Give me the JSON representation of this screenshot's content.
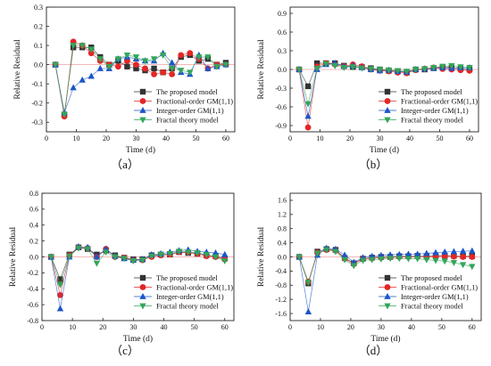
{
  "figure": {
    "series_styles": [
      {
        "name": "The proposed model",
        "color": "#333333",
        "marker": "square"
      },
      {
        "name": "Fractional-order GM(1,1)",
        "color": "#e32626",
        "marker": "circle"
      },
      {
        "name": "Integer-order GM(1,1)",
        "color": "#1b55c9",
        "marker": "triangle-up"
      },
      {
        "name": "Fractal theory model",
        "color": "#33a65a",
        "marker": "triangle-down"
      }
    ],
    "zero_line_color": "#f0a0a0"
  },
  "chart_data": [
    {
      "id": "a",
      "type": "line",
      "caption": "（a）",
      "xlabel": "Time (d)",
      "ylabel": "Relative Residual",
      "xlim": [
        0,
        63
      ],
      "ylim": [
        -0.35,
        0.3
      ],
      "xticks": [
        0,
        10,
        20,
        30,
        40,
        50,
        60
      ],
      "yticks": [
        -0.3,
        -0.2,
        -0.1,
        0.0,
        0.1,
        0.2,
        0.3
      ],
      "ytick_labels": [
        "-0.3",
        "-0.2",
        "-0.1",
        "0.0",
        "0.1",
        "0.2",
        "0.3"
      ],
      "grid": false,
      "legend_position": "lower-right",
      "x": [
        3,
        6,
        9,
        12,
        15,
        18,
        21,
        24,
        27,
        30,
        33,
        36,
        39,
        42,
        45,
        48,
        51,
        54,
        57,
        60
      ],
      "series": [
        {
          "name": "The proposed model",
          "values": [
            0,
            -0.26,
            0.09,
            0.09,
            0.09,
            0.04,
            0.0,
            0.02,
            -0.01,
            -0.02,
            -0.03,
            -0.02,
            -0.04,
            -0.02,
            0.04,
            0.05,
            0.02,
            0.03,
            0.0,
            0.01
          ]
        },
        {
          "name": "Fractional-order GM(1,1)",
          "values": [
            0,
            -0.27,
            0.12,
            0.1,
            0.06,
            0.02,
            0.0,
            -0.01,
            0.02,
            0.0,
            -0.02,
            -0.05,
            -0.04,
            -0.05,
            0.05,
            0.06,
            0.03,
            -0.02,
            0.0,
            0.0
          ]
        },
        {
          "name": "Integer-order GM(1,1)",
          "values": [
            0,
            -0.25,
            -0.12,
            -0.08,
            -0.06,
            -0.02,
            -0.02,
            0.03,
            0.04,
            0.03,
            0.02,
            0.02,
            0.06,
            0.01,
            -0.04,
            -0.05,
            0.05,
            -0.02,
            -0.01,
            0.0
          ]
        },
        {
          "name": "Fractal theory model",
          "values": [
            0,
            -0.26,
            0.1,
            0.1,
            0.08,
            0.03,
            -0.01,
            0.03,
            0.05,
            0.04,
            0.02,
            0.03,
            0.05,
            -0.02,
            -0.03,
            -0.04,
            0.04,
            0.04,
            -0.01,
            0.0
          ]
        }
      ]
    },
    {
      "id": "b",
      "type": "line",
      "caption": "（b）",
      "xlabel": "Time (d)",
      "ylabel": "Relative Residual",
      "xlim": [
        0,
        63
      ],
      "ylim": [
        -1.0,
        1.0
      ],
      "xticks": [
        0,
        10,
        20,
        30,
        40,
        50,
        60
      ],
      "yticks": [
        -0.9,
        -0.6,
        -0.3,
        0.0,
        0.3,
        0.6,
        0.9
      ],
      "ytick_labels": [
        "-0.9",
        "-0.6",
        "-0.3",
        "0.0",
        "0.3",
        "0.6",
        "0.9"
      ],
      "grid": false,
      "legend_position": "lower-right",
      "x": [
        3,
        6,
        9,
        12,
        15,
        18,
        21,
        24,
        27,
        30,
        33,
        36,
        39,
        42,
        45,
        48,
        51,
        54,
        57,
        60
      ],
      "series": [
        {
          "name": "The proposed model",
          "values": [
            0,
            -0.27,
            0.1,
            0.1,
            0.1,
            0.06,
            0.04,
            0.04,
            0.02,
            0.0,
            -0.02,
            -0.03,
            -0.05,
            0.0,
            0.0,
            0.02,
            0.04,
            0.03,
            0.01,
            0.0
          ]
        },
        {
          "name": "Fractional-order GM(1,1)",
          "values": [
            0,
            -0.93,
            0.05,
            0.1,
            0.08,
            0.05,
            0.08,
            0.05,
            0.0,
            -0.02,
            -0.03,
            -0.05,
            -0.06,
            -0.01,
            0.01,
            0.03,
            0.01,
            0.0,
            -0.01,
            -0.02
          ]
        },
        {
          "name": "Integer-order GM(1,1)",
          "values": [
            0,
            -0.75,
            0.0,
            0.08,
            0.1,
            0.05,
            0.06,
            0.03,
            0.0,
            -0.02,
            -0.01,
            -0.03,
            -0.04,
            0.0,
            0.01,
            0.02,
            0.03,
            0.02,
            0.03,
            0.03
          ]
        },
        {
          "name": "Fractal theory model",
          "values": [
            0,
            -0.55,
            0.02,
            0.09,
            0.06,
            0.03,
            0.04,
            0.02,
            0.01,
            0.0,
            -0.01,
            -0.02,
            -0.03,
            0.0,
            0.01,
            0.03,
            0.05,
            0.06,
            0.04,
            0.03
          ]
        }
      ]
    },
    {
      "id": "c",
      "type": "line",
      "caption": "（c）",
      "xlabel": "Time (d)",
      "ylabel": "Relative Residual",
      "xlim": [
        0,
        63
      ],
      "ylim": [
        -0.8,
        0.8
      ],
      "xticks": [
        0,
        10,
        20,
        30,
        40,
        50,
        60
      ],
      "yticks": [
        -0.8,
        -0.6,
        -0.4,
        -0.2,
        0.0,
        0.2,
        0.4,
        0.6,
        0.8
      ],
      "ytick_labels": [
        "-0.8",
        "-0.6",
        "-0.4",
        "-0.2",
        "0.0",
        "0.2",
        "0.4",
        "0.6",
        "0.8"
      ],
      "grid": false,
      "legend_position": "lower-right",
      "x": [
        3,
        6,
        9,
        12,
        15,
        18,
        21,
        24,
        27,
        30,
        33,
        36,
        39,
        42,
        45,
        48,
        51,
        54,
        57,
        60
      ],
      "series": [
        {
          "name": "The proposed model",
          "values": [
            0,
            -0.28,
            0.03,
            0.12,
            0.1,
            0.03,
            0.08,
            0.02,
            -0.01,
            -0.03,
            -0.03,
            0.02,
            0.03,
            0.03,
            0.06,
            0.05,
            0.04,
            0.02,
            0.01,
            -0.02
          ]
        },
        {
          "name": "Fractional-order GM(1,1)",
          "values": [
            0,
            -0.48,
            0.02,
            0.12,
            0.11,
            0.0,
            0.1,
            0.0,
            -0.01,
            -0.04,
            -0.04,
            0.0,
            0.02,
            0.03,
            0.06,
            0.06,
            0.04,
            0.01,
            0.0,
            -0.03
          ]
        },
        {
          "name": "Integer-order GM(1,1)",
          "values": [
            0,
            -0.65,
            0.0,
            0.13,
            0.12,
            0.0,
            0.1,
            0.01,
            -0.02,
            -0.04,
            -0.03,
            0.03,
            0.04,
            0.06,
            0.08,
            0.09,
            0.07,
            0.06,
            0.05,
            0.03
          ]
        },
        {
          "name": "Fractal theory model",
          "values": [
            0,
            -0.35,
            0.01,
            0.11,
            0.1,
            -0.08,
            0.06,
            0.0,
            -0.02,
            -0.05,
            -0.04,
            0.01,
            0.03,
            0.04,
            0.07,
            0.06,
            0.05,
            0.03,
            0.0,
            -0.05
          ]
        }
      ]
    },
    {
      "id": "d",
      "type": "line",
      "caption": "（d）",
      "xlabel": "Time (d)",
      "ylabel": "Relative Residual",
      "xlim": [
        0,
        63
      ],
      "ylim": [
        -1.8,
        1.8
      ],
      "xticks": [
        0,
        10,
        20,
        30,
        40,
        50,
        60
      ],
      "yticks": [
        -1.6,
        -1.2,
        -0.8,
        -0.4,
        0.0,
        0.4,
        0.8,
        1.2,
        1.6
      ],
      "ytick_labels": [
        "-1.6",
        "-1.2",
        "-0.8",
        "-0.4",
        "0.0",
        "0.4",
        "0.8",
        "1.2",
        "1.6"
      ],
      "grid": false,
      "legend_position": "lower-right",
      "x": [
        3,
        6,
        9,
        12,
        15,
        18,
        21,
        24,
        27,
        30,
        33,
        36,
        39,
        42,
        45,
        48,
        51,
        54,
        57,
        60
      ],
      "series": [
        {
          "name": "The proposed model",
          "values": [
            0,
            -0.75,
            0.15,
            0.22,
            0.2,
            -0.03,
            -0.18,
            -0.05,
            -0.02,
            0.0,
            0.0,
            0.02,
            0.02,
            0.03,
            0.02,
            0.03,
            0.04,
            0.03,
            0.02,
            0.02
          ]
        },
        {
          "name": "Fractional-order GM(1,1)",
          "values": [
            0,
            -0.7,
            0.12,
            0.2,
            0.18,
            -0.05,
            -0.2,
            -0.06,
            -0.04,
            -0.02,
            -0.01,
            0.0,
            0.0,
            0.01,
            0.0,
            0.01,
            0.02,
            0.01,
            0.0,
            0.0
          ]
        },
        {
          "name": "Integer-order GM(1,1)",
          "values": [
            0,
            -1.55,
            0.05,
            0.25,
            0.22,
            0.05,
            -0.15,
            -0.02,
            0.02,
            0.04,
            0.06,
            0.07,
            0.08,
            0.08,
            0.1,
            0.12,
            0.14,
            0.15,
            0.16,
            0.17
          ]
        },
        {
          "name": "Fractal theory model",
          "values": [
            0,
            -0.72,
            0.1,
            0.2,
            0.15,
            -0.08,
            -0.25,
            -0.1,
            -0.08,
            -0.06,
            -0.04,
            -0.04,
            -0.05,
            -0.05,
            -0.08,
            -0.1,
            -0.12,
            -0.16,
            -0.22,
            -0.27
          ]
        }
      ]
    }
  ]
}
